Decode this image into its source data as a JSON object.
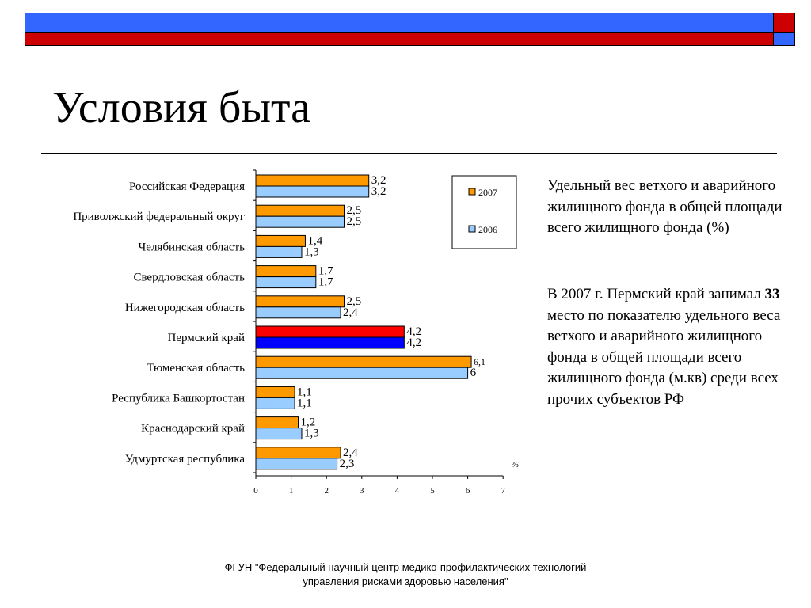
{
  "colors": {
    "header_blue": "#3366ff",
    "header_red": "#cc0000",
    "series_2007": "#ff9900",
    "series_2006": "#99ccff",
    "highlight_2007": "#ff0000",
    "highlight_2006": "#0000ff"
  },
  "title": "Условия быта",
  "chart_data": {
    "type": "bar",
    "orientation": "horizontal",
    "categories": [
      "Российская Федерация",
      "Приволжский федеральный округ",
      "Челябинская область",
      "Свердловская область",
      "Нижегородская область",
      "Пермский край",
      "Тюменская область",
      "Республика Башкортостан",
      "Краснодарский край",
      "Удмуртская республика"
    ],
    "series": [
      {
        "name": "2007",
        "values": [
          3.2,
          2.5,
          1.4,
          1.7,
          2.5,
          4.2,
          6.1,
          1.1,
          1.2,
          2.4
        ],
        "labels": [
          "3,2",
          "2,5",
          "1,4",
          "1,7",
          "2,5",
          "4,2",
          "6,1",
          "1,1",
          "1,2",
          "2,4"
        ]
      },
      {
        "name": "2006",
        "values": [
          3.2,
          2.5,
          1.3,
          1.7,
          2.4,
          4.2,
          6.0,
          1.1,
          1.3,
          2.3
        ],
        "labels": [
          "3,2",
          "2,5",
          "1,3",
          "1,7",
          "2,4",
          "4,2",
          "6",
          "1,1",
          "1,3",
          "2,3"
        ]
      }
    ],
    "highlight_category": "Пермский край",
    "xlim": [
      0,
      7
    ],
    "xticks": [
      "0",
      "1",
      "2",
      "3",
      "4",
      "5",
      "6",
      "7"
    ],
    "unit_label": "%",
    "grid": false,
    "legend_position": "top-right"
  },
  "side_text": {
    "paragraph1": "Удельный вес ветхого и аварийного жилищного фонда в общей площади всего жилищного фонда (%)",
    "paragraph2_before": "В 2007 г. Пермский край занимал ",
    "paragraph2_bold": "33",
    "paragraph2_after": " место по показателю удельного веса ветхого и аварийного жилищного фонда в общей площади всего жилищного фонда (м.кв) среди всех прочих субъектов РФ"
  },
  "footer": {
    "line1": "ФГУН \"Федеральный научный центр медико-профилактических технологий",
    "line2": "управления рисками здоровью населения\""
  }
}
